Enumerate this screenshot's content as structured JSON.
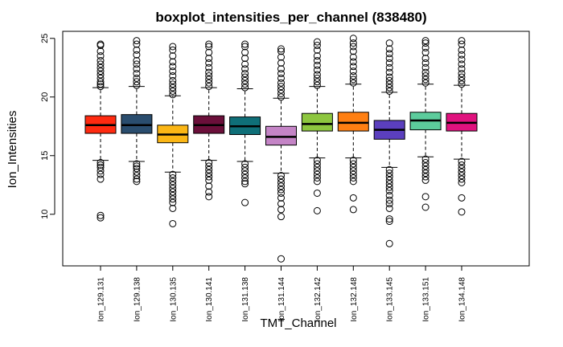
{
  "chart_data": {
    "type": "boxplot",
    "title": "boxplot_intensities_per_channel (838480)",
    "xlabel": "TMT_Channel",
    "ylabel": "Ion_Intensities",
    "ylim": [
      5.6,
      25.6
    ],
    "yticks": [
      10,
      15,
      20,
      25
    ],
    "ytick_labels": [
      "10",
      "15",
      "20",
      "25"
    ],
    "categories": [
      "Ion_129.131",
      "Ion_129.138",
      "Ion_130.135",
      "Ion_130.141",
      "Ion_131.138",
      "Ion_131.144",
      "Ion_132.142",
      "Ion_132.148",
      "Ion_133.145",
      "Ion_133.151",
      "Ion_134.148"
    ],
    "boxes": [
      {
        "name": "Ion_129.131",
        "color": "#ff2a10",
        "whisker_low": 14.6,
        "q1": 16.9,
        "median": 17.6,
        "q3": 18.4,
        "whisker_high": 20.8,
        "outliers": [
          20.9,
          21.1,
          21.3,
          21.6,
          21.9,
          22.2,
          22.5,
          22.8,
          23.1,
          23.5,
          23.9,
          24.4,
          24.5,
          14.4,
          14.2,
          14.0,
          13.7,
          13.4,
          13.0,
          9.9,
          9.7
        ]
      },
      {
        "name": "Ion_129.138",
        "color": "#2a4d6e",
        "whisker_low": 14.5,
        "q1": 16.9,
        "median": 17.6,
        "q3": 18.5,
        "whisker_high": 20.9,
        "outliers": [
          21.0,
          21.3,
          21.6,
          22.0,
          22.4,
          22.8,
          23.1,
          23.6,
          24.0,
          24.5,
          24.8,
          14.3,
          14.1,
          13.9,
          13.6,
          13.3,
          13.0,
          12.8
        ]
      },
      {
        "name": "Ion_130.135",
        "color": "#fbb615",
        "whisker_low": 13.6,
        "q1": 16.1,
        "median": 16.8,
        "q3": 17.6,
        "whisker_high": 20.1,
        "outliers": [
          20.2,
          20.5,
          20.8,
          21.1,
          21.4,
          21.8,
          22.2,
          22.6,
          23.0,
          23.5,
          24.0,
          24.3,
          13.4,
          13.1,
          12.8,
          12.5,
          12.2,
          11.9,
          11.6,
          11.3,
          11.0,
          10.5,
          9.2
        ]
      },
      {
        "name": "Ion_130.141",
        "color": "#6b0f3a",
        "whisker_low": 14.6,
        "q1": 16.9,
        "median": 17.6,
        "q3": 18.4,
        "whisker_high": 20.8,
        "outliers": [
          20.9,
          21.2,
          21.5,
          21.8,
          22.1,
          22.5,
          22.9,
          23.3,
          23.8,
          24.3,
          24.5,
          14.4,
          14.1,
          13.8,
          13.5,
          13.2,
          12.9,
          12.4,
          11.9,
          11.5
        ]
      },
      {
        "name": "Ion_131.138",
        "color": "#0f6f78",
        "whisker_low": 14.5,
        "q1": 16.8,
        "median": 17.5,
        "q3": 18.3,
        "whisker_high": 20.7,
        "outliers": [
          20.8,
          21.1,
          21.4,
          21.7,
          22.0,
          22.4,
          22.8,
          23.3,
          23.8,
          24.3,
          24.5,
          14.3,
          14.0,
          13.7,
          13.4,
          13.1,
          12.8,
          12.6,
          11.0
        ]
      },
      {
        "name": "Ion_131.144",
        "color": "#c484c6",
        "whisker_low": 13.5,
        "q1": 15.9,
        "median": 16.6,
        "q3": 17.5,
        "whisker_high": 19.9,
        "outliers": [
          20.0,
          20.3,
          20.6,
          20.9,
          21.2,
          21.6,
          22.0,
          22.4,
          22.9,
          23.4,
          23.9,
          24.1,
          13.3,
          13.0,
          12.7,
          12.4,
          12.1,
          11.8,
          11.4,
          10.9,
          10.4,
          9.8,
          6.2
        ]
      },
      {
        "name": "Ion_132.142",
        "color": "#8dc63f",
        "whisker_low": 14.8,
        "q1": 17.1,
        "median": 17.7,
        "q3": 18.6,
        "whisker_high": 20.9,
        "outliers": [
          21.0,
          21.3,
          21.6,
          21.9,
          22.3,
          22.7,
          23.1,
          23.5,
          24.0,
          24.4,
          24.7,
          14.6,
          14.3,
          14.0,
          13.7,
          13.4,
          13.1,
          12.8,
          11.8,
          10.3
        ]
      },
      {
        "name": "Ion_132.148",
        "color": "#ff7f12",
        "whisker_low": 14.8,
        "q1": 17.1,
        "median": 17.8,
        "q3": 18.7,
        "whisker_high": 21.1,
        "outliers": [
          21.2,
          21.5,
          21.8,
          22.2,
          22.6,
          23.0,
          23.4,
          23.9,
          24.3,
          24.6,
          25.0,
          14.6,
          14.3,
          14.0,
          13.7,
          13.4,
          13.1,
          12.8,
          11.4,
          10.4
        ]
      },
      {
        "name": "Ion_133.145",
        "color": "#5b3fbe",
        "whisker_low": 14.0,
        "q1": 16.4,
        "median": 17.2,
        "q3": 18.0,
        "whisker_high": 20.4,
        "outliers": [
          20.5,
          20.8,
          21.1,
          21.4,
          21.7,
          22.1,
          22.5,
          22.9,
          23.3,
          23.7,
          24.1,
          24.6,
          13.8,
          13.5,
          13.2,
          12.9,
          12.6,
          12.3,
          12.0,
          11.6,
          11.2,
          10.9,
          10.5,
          9.6,
          9.4,
          7.5
        ]
      },
      {
        "name": "Ion_133.151",
        "color": "#5ccc9c",
        "whisker_low": 14.9,
        "q1": 17.2,
        "median": 18.0,
        "q3": 18.7,
        "whisker_high": 21.1,
        "outliers": [
          21.2,
          21.5,
          21.8,
          22.1,
          22.5,
          22.9,
          23.3,
          23.8,
          24.2,
          24.6,
          24.8,
          14.7,
          14.4,
          14.1,
          13.8,
          13.5,
          13.2,
          12.9,
          11.5,
          10.6
        ]
      },
      {
        "name": "Ion_134.148",
        "color": "#e0127e",
        "whisker_low": 14.7,
        "q1": 17.1,
        "median": 17.8,
        "q3": 18.6,
        "whisker_high": 21.0,
        "outliers": [
          21.1,
          21.4,
          21.7,
          22.0,
          22.4,
          22.8,
          23.2,
          23.6,
          24.0,
          24.5,
          24.8,
          14.5,
          14.2,
          13.9,
          13.6,
          13.3,
          13.0,
          12.7,
          11.4,
          10.2
        ]
      }
    ]
  }
}
